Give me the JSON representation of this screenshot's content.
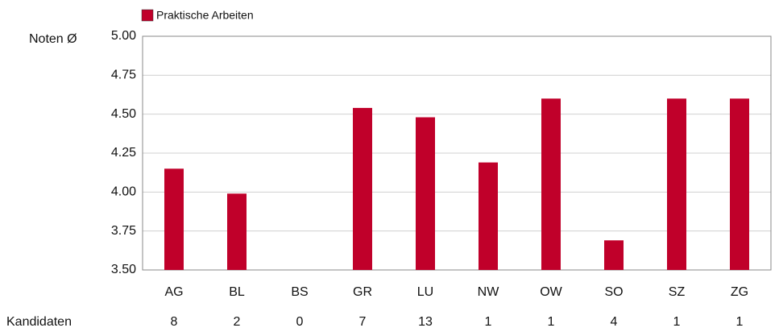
{
  "chart_data": {
    "type": "bar",
    "ylabel": "Noten Ø",
    "categories": [
      "AG",
      "BL",
      "BS",
      "GR",
      "LU",
      "NW",
      "OW",
      "SO",
      "SZ",
      "ZG"
    ],
    "series": [
      {
        "name": "Praktische Arbeiten",
        "color": "#c0002a",
        "values": [
          4.15,
          3.99,
          null,
          4.54,
          4.48,
          4.19,
          4.6,
          3.69,
          4.6,
          4.6
        ]
      }
    ],
    "ylim": [
      3.5,
      5.0
    ],
    "yticks": [
      {
        "value": 3.5,
        "label": "3.50"
      },
      {
        "value": 3.75,
        "label": "3.75"
      },
      {
        "value": 4.0,
        "label": "4.00"
      },
      {
        "value": 4.25,
        "label": "4.25"
      },
      {
        "value": 4.5,
        "label": "4.50"
      },
      {
        "value": 4.75,
        "label": "4.75"
      },
      {
        "value": 5.0,
        "label": "5.00"
      }
    ],
    "grid": true,
    "legend": "top",
    "candidates_label": "Kandidaten",
    "candidates": [
      8,
      2,
      0,
      7,
      13,
      1,
      1,
      4,
      1,
      1
    ]
  }
}
